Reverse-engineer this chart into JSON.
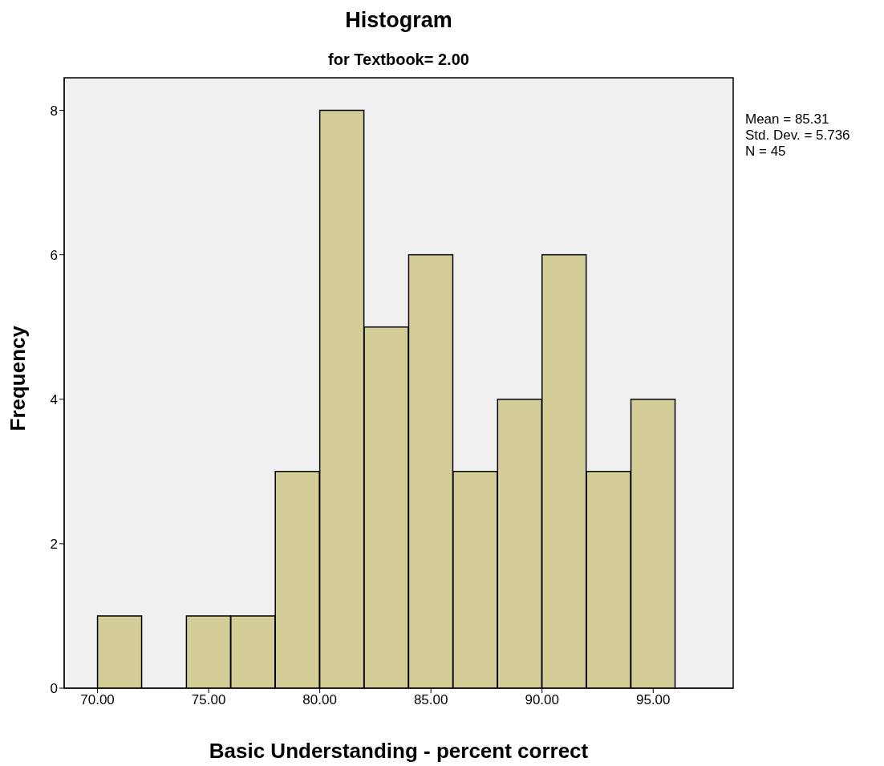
{
  "chart_data": {
    "type": "histogram",
    "title": "Histogram",
    "subtitle": "for Textbook= 2.00",
    "xlabel": "Basic Understanding - percent correct",
    "ylabel": "Frequency",
    "bins": [
      70,
      72,
      74,
      76,
      78,
      80,
      82,
      84,
      86,
      88,
      90,
      92,
      94,
      96
    ],
    "values": [
      1,
      0,
      1,
      1,
      3,
      8,
      5,
      6,
      3,
      4,
      6,
      3,
      4
    ],
    "color": "#d3ce97",
    "xlim": [
      68.5,
      98.6
    ],
    "xticks": [
      {
        "value": 70,
        "label": "70.00"
      },
      {
        "value": 75,
        "label": "75.00"
      },
      {
        "value": 80,
        "label": "80.00"
      },
      {
        "value": 85,
        "label": "85.00"
      },
      {
        "value": 90,
        "label": "90.00"
      },
      {
        "value": 95,
        "label": "95.00"
      }
    ],
    "ylim": [
      0,
      8.45
    ],
    "yticks": [
      0,
      2,
      4,
      6,
      8
    ],
    "grid": false,
    "annotations": [
      "Mean = 85.31",
      "Std. Dev. = 5.736",
      "N = 45"
    ]
  }
}
